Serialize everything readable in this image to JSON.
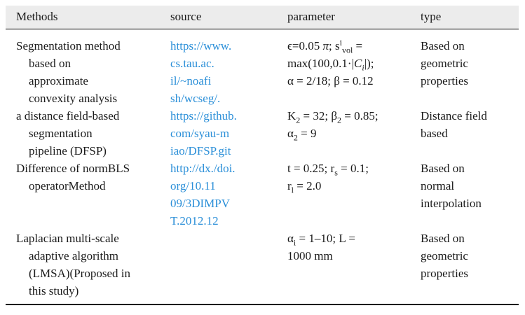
{
  "header": {
    "methods": "Methods",
    "source": "source",
    "parameter": "parameter",
    "type": "type"
  },
  "rows": [
    {
      "method": [
        "Segmentation method",
        "based on",
        "approximate",
        "convexity analysis"
      ],
      "source": [
        "https://www.",
        "cs.tau.ac.",
        "il/~noafi",
        "sh/wcseg/."
      ],
      "parameter": {
        "line1_prefix": "ϵ=0.05 ",
        "line1_pi": "π",
        "line1_mid": "; s",
        "line1_sup": "i",
        "line1_sub": "vol",
        "line1_suffix": " =",
        "line2_prefix": "max(100,0.1·|",
        "line2_var": "C",
        "line2_sub": "i",
        "line2_suffix": "|);",
        "line3": "α = 2/18; β = 0.12"
      },
      "type": [
        "Based on",
        "geometric",
        "properties"
      ]
    },
    {
      "method": [
        "a distance field-based",
        "segmentation",
        "pipeline (DFSP)"
      ],
      "source": [
        "https://github.",
        "com/syau-m",
        "iao/DFSP.git"
      ],
      "parameter": {
        "line1_a": "K",
        "line1_a_sub": "2",
        "line1_b": " = 32; β",
        "line1_b_sub": "2",
        "line1_c": " = 0.85;",
        "line2_a": "α",
        "line2_a_sub": "2",
        "line2_b": " = 9"
      },
      "type": [
        "Distance field",
        "based"
      ]
    },
    {
      "method": [
        "Difference of normBLS",
        "operatorMethod"
      ],
      "source": [
        "http://dx./doi.",
        "org/10.11",
        "09/3DIMPV",
        "T.2012.12"
      ],
      "parameter": {
        "line1_a": "t = 0.25; r",
        "line1_a_sub": "s",
        "line1_b": " = 0.1;",
        "line2_a": "r",
        "line2_a_sub": "l",
        "line2_b": " = 2.0"
      },
      "type": [
        "Based on",
        "normal",
        "interpolation"
      ]
    },
    {
      "method": [
        "Laplacian multi-scale",
        "adaptive algorithm",
        "(LMSA)(Proposed in",
        "this study)"
      ],
      "source": [],
      "parameter": {
        "line1_a": "α",
        "line1_a_sub": "i",
        "line1_b": " = 1–10; L =",
        "line2": "1000 mm"
      },
      "type": [
        "Based on",
        "geometric",
        "properties"
      ]
    }
  ]
}
